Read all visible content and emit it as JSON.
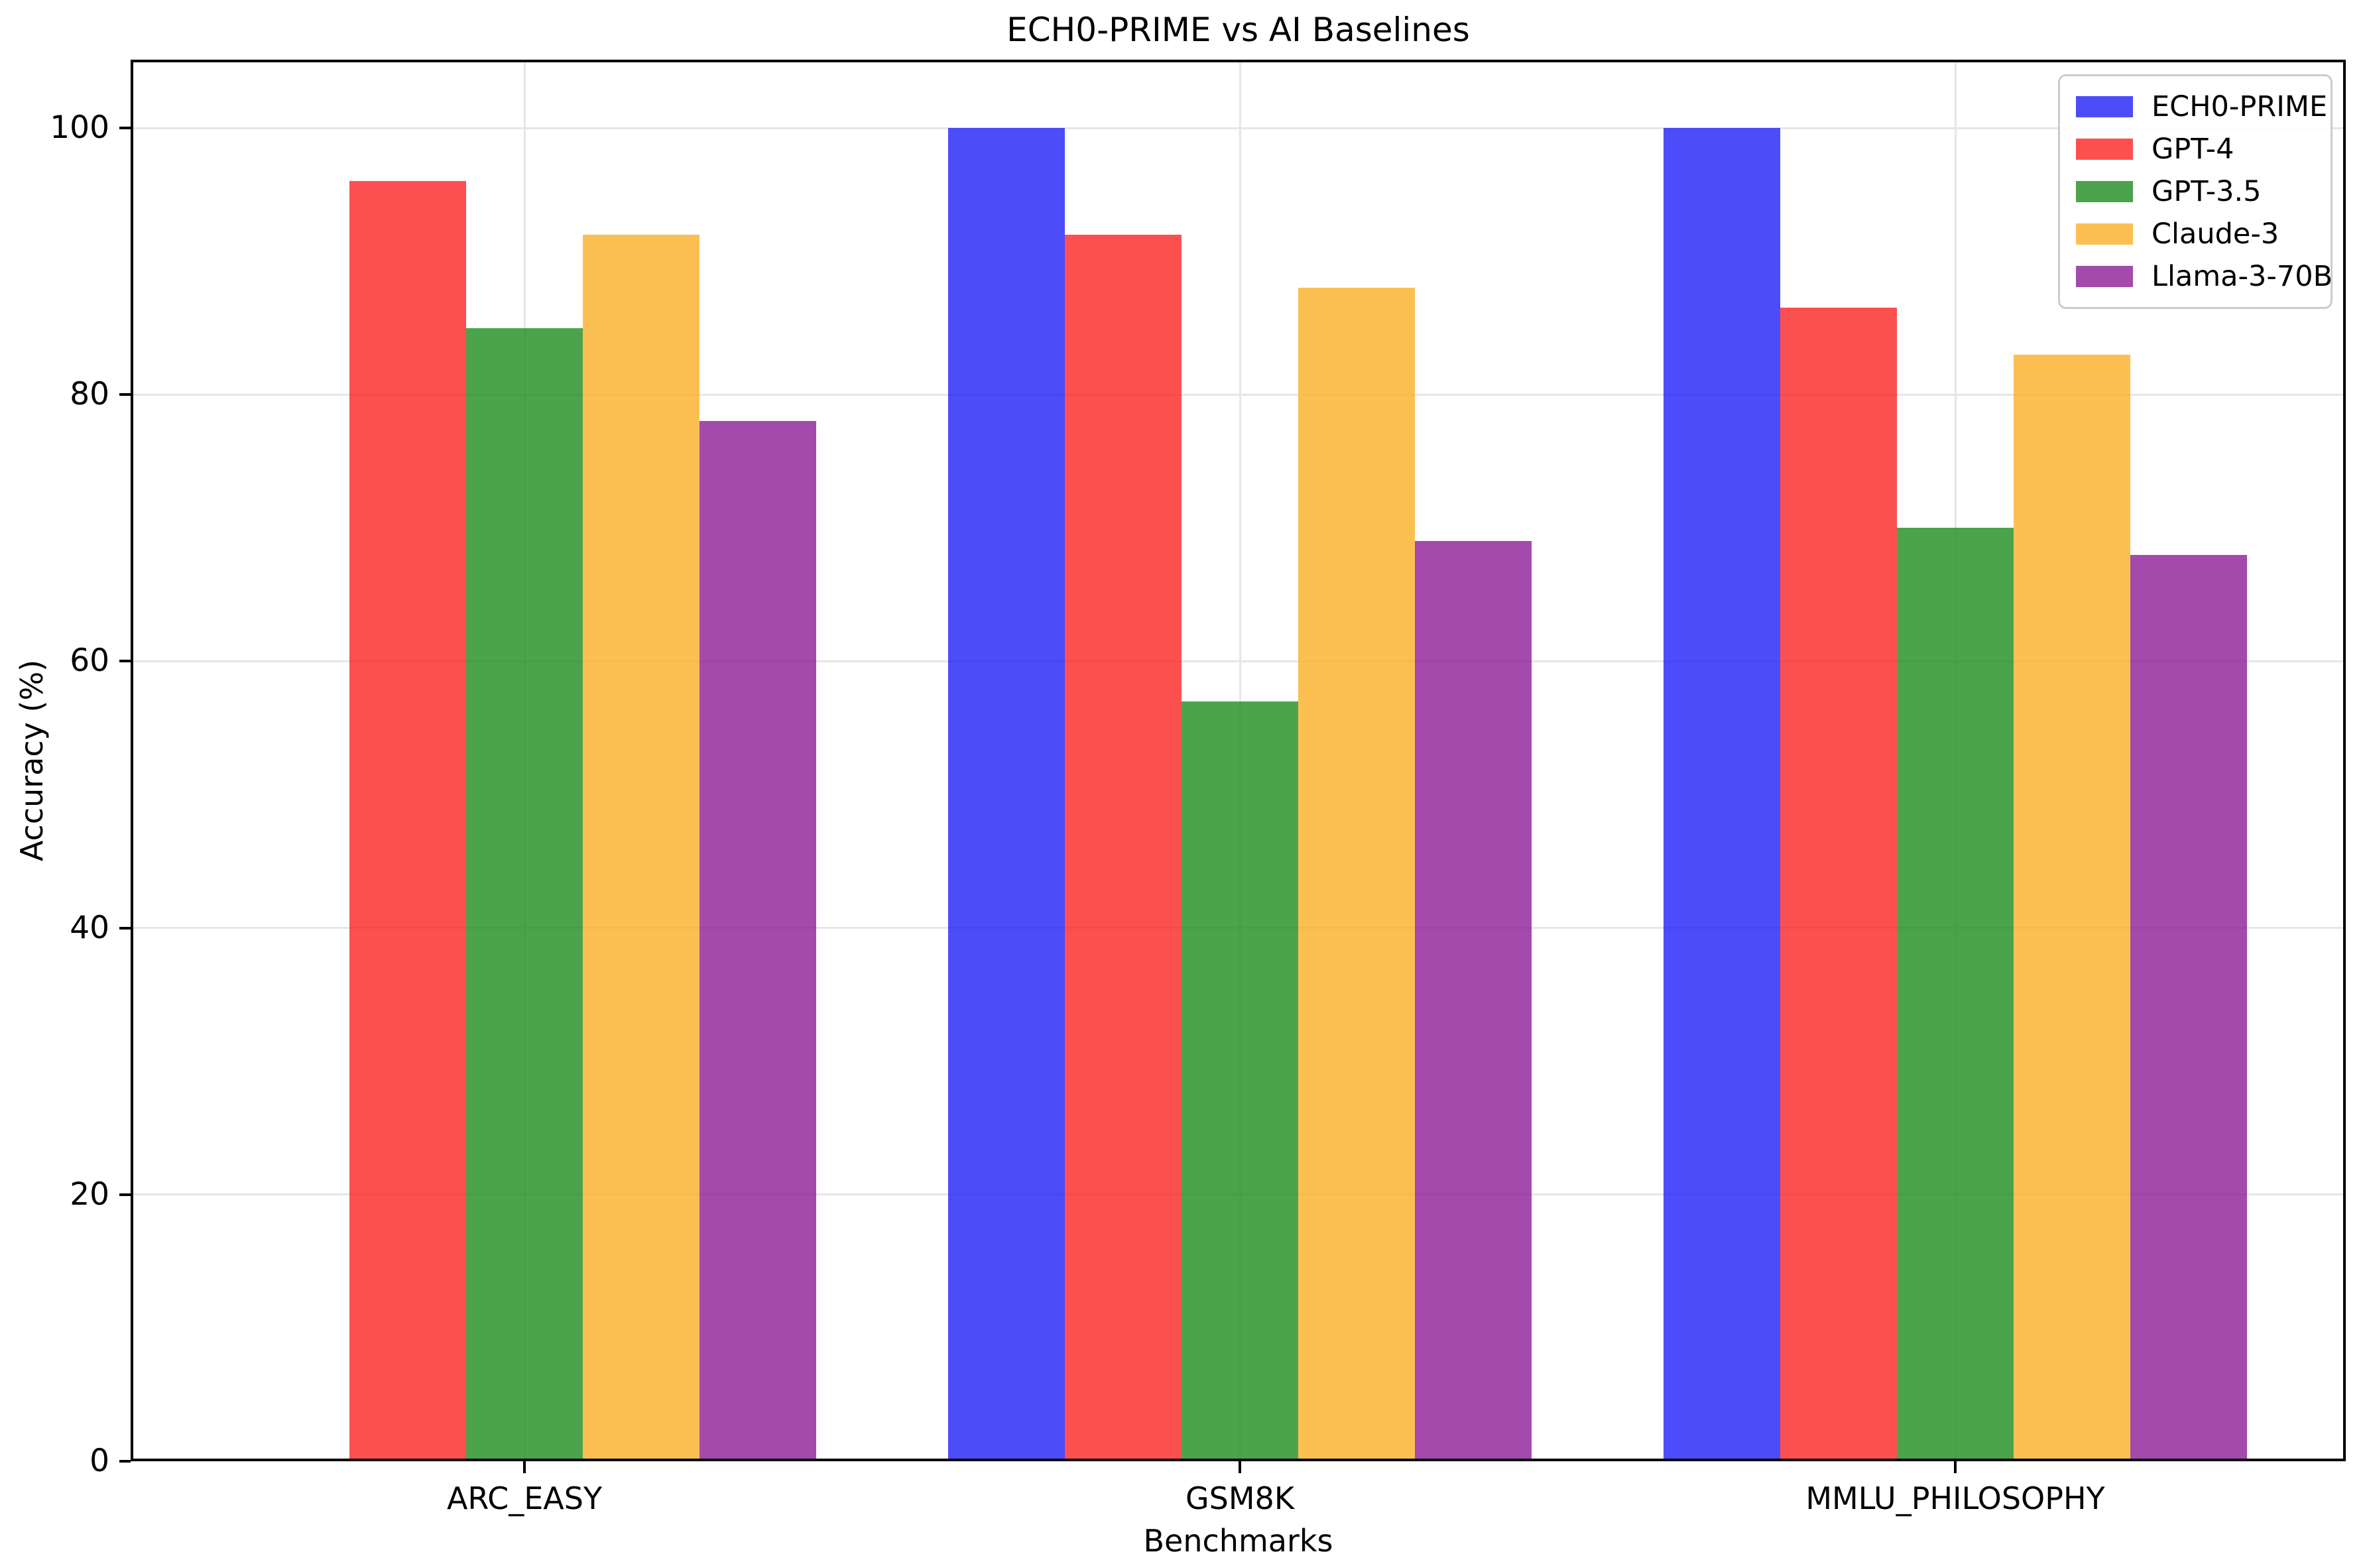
{
  "chart_data": {
    "type": "bar",
    "title": "ECH0-PRIME vs AI Baselines",
    "xlabel": "Benchmarks",
    "ylabel": "Accuracy (%)",
    "categories": [
      "ARC_EASY",
      "GSM8K",
      "MMLU_PHILOSOPHY"
    ],
    "series": [
      {
        "name": "ECH0-PRIME",
        "color": "#1F1FF7",
        "values": [
          0,
          100,
          100
        ]
      },
      {
        "name": "GPT-4",
        "color": "#FB2424",
        "values": [
          96,
          92,
          86.5
        ]
      },
      {
        "name": "GPT-3.5",
        "color": "#1E8D1E",
        "values": [
          85,
          57,
          70
        ]
      },
      {
        "name": "Claude-3",
        "color": "#FBB027",
        "values": [
          92,
          88,
          83
        ]
      },
      {
        "name": "Llama-3-70B",
        "color": "#8D1D97",
        "values": [
          78,
          69,
          68
        ]
      }
    ],
    "bar_alpha": 0.8,
    "yticks": [
      0,
      20,
      40,
      60,
      80,
      100
    ],
    "ylim": [
      0,
      105.1
    ],
    "grid": true,
    "gridline_color": "#e6e6e6",
    "legend_position": "upper right",
    "text_color": "#000000"
  }
}
